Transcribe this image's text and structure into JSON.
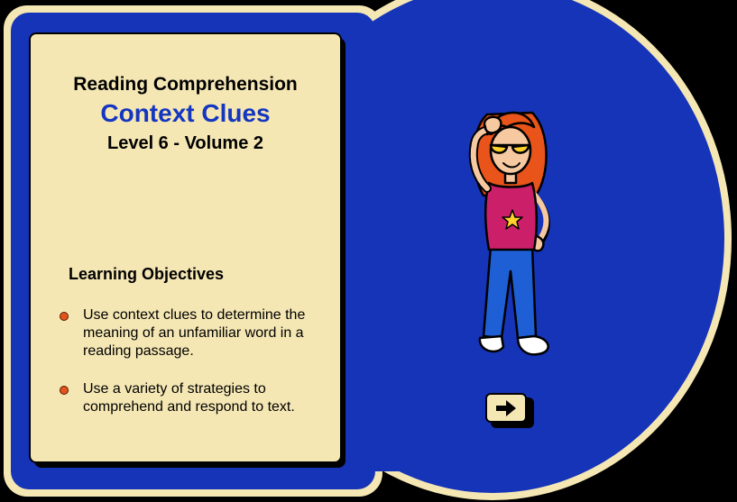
{
  "lesson": {
    "subject": "Reading Comprehension",
    "title": "Context Clues",
    "level": "Level 6 - Volume 2"
  },
  "objectives": {
    "heading": "Learning Objectives",
    "items": [
      "Use context clues to determine the meaning of an unfamiliar word in a reading passage.",
      "Use a variety of strategies to comprehend  and respond to text."
    ]
  },
  "navigation": {
    "next_icon": "right-arrow-icon"
  },
  "colors": {
    "blue": "#1634b8",
    "cream": "#f5e7b4",
    "title_blue": "#1436c0",
    "bullet": "#e2541c"
  }
}
